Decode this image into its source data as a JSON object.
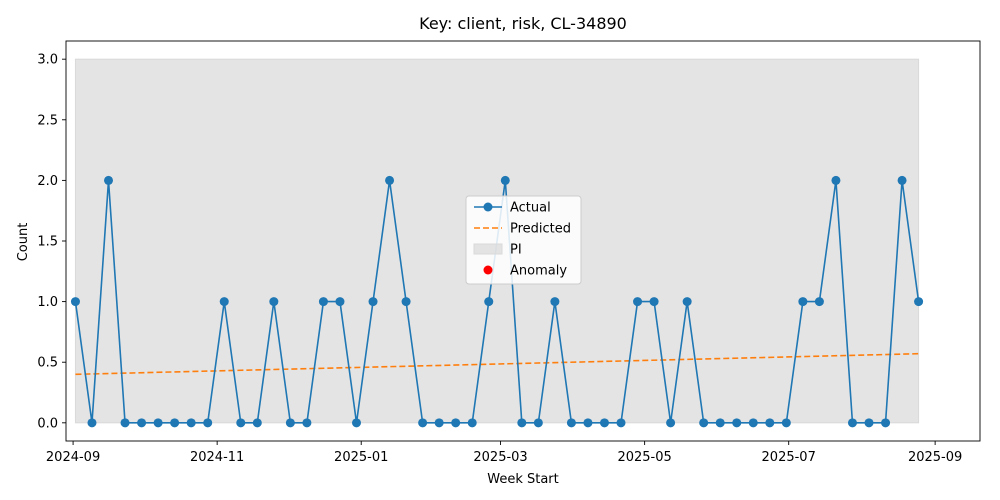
{
  "chart_data": {
    "type": "line",
    "title": "Key: client, risk, CL-34890",
    "xlabel": "Week Start",
    "ylabel": "Count",
    "ylim": [
      -0.15,
      3.15
    ],
    "xlim": [
      "2024-08-29",
      "2025-09-20"
    ],
    "y_ticks": [
      0.0,
      0.5,
      1.0,
      1.5,
      2.0,
      2.5,
      3.0
    ],
    "y_tick_labels": [
      "0.0",
      "0.5",
      "1.0",
      "1.5",
      "2.0",
      "2.5",
      "3.0"
    ],
    "x_ticks": [
      "2024-09-01",
      "2024-11-01",
      "2025-01-01",
      "2025-03-01",
      "2025-05-01",
      "2025-07-01",
      "2025-09-01"
    ],
    "x_tick_labels": [
      "2024-09",
      "2024-11",
      "2025-01",
      "2025-03",
      "2025-05",
      "2025-07",
      "2025-09"
    ],
    "grid": false,
    "legend_position": "center",
    "legend": [
      {
        "name": "Actual",
        "kind": "line-marker",
        "color": "#1f77b4"
      },
      {
        "name": "Predicted",
        "kind": "dashed",
        "color": "#ff7f0e"
      },
      {
        "name": "PI",
        "kind": "patch",
        "color": "#d9d9d9"
      },
      {
        "name": "Anomaly",
        "kind": "dot",
        "color": "#ff0000"
      }
    ],
    "x": [
      "2024-09-02",
      "2024-09-09",
      "2024-09-16",
      "2024-09-23",
      "2024-09-30",
      "2024-10-07",
      "2024-10-14",
      "2024-10-21",
      "2024-10-28",
      "2024-11-04",
      "2024-11-11",
      "2024-11-18",
      "2024-11-25",
      "2024-12-02",
      "2024-12-09",
      "2024-12-16",
      "2024-12-23",
      "2024-12-30",
      "2025-01-06",
      "2025-01-13",
      "2025-01-20",
      "2025-01-27",
      "2025-02-03",
      "2025-02-10",
      "2025-02-17",
      "2025-02-24",
      "2025-03-03",
      "2025-03-10",
      "2025-03-17",
      "2025-03-24",
      "2025-03-31",
      "2025-04-07",
      "2025-04-14",
      "2025-04-21",
      "2025-04-28",
      "2025-05-05",
      "2025-05-12",
      "2025-05-19",
      "2025-05-26",
      "2025-06-02",
      "2025-06-09",
      "2025-06-16",
      "2025-06-23",
      "2025-06-30",
      "2025-07-07",
      "2025-07-14",
      "2025-07-21",
      "2025-07-28",
      "2025-08-04",
      "2025-08-11",
      "2025-08-18",
      "2025-08-25"
    ],
    "series": [
      {
        "name": "Actual",
        "color": "#1f77b4",
        "values": [
          1,
          0,
          2,
          0,
          0,
          0,
          0,
          0,
          0,
          1,
          0,
          0,
          1,
          0,
          0,
          1,
          1,
          0,
          1,
          2,
          1,
          0,
          0,
          0,
          0,
          1,
          2,
          0,
          0,
          1,
          0,
          0,
          0,
          0,
          1,
          1,
          0,
          1,
          0,
          0,
          0,
          0,
          0,
          0,
          1,
          1,
          2,
          0,
          0,
          0,
          2,
          1
        ]
      },
      {
        "name": "Predicted",
        "color": "#ff7f0e",
        "start": 0.4,
        "end": 0.57
      }
    ],
    "pi_band": {
      "lower": 0.0,
      "upper": 3.0,
      "color": "#d9d9d9"
    },
    "anomalies": []
  }
}
